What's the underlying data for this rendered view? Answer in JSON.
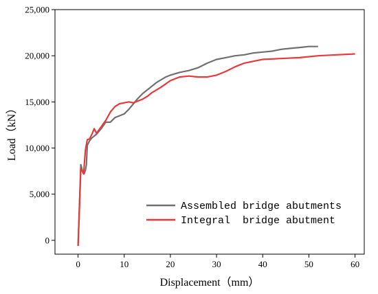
{
  "chart_data": {
    "type": "line",
    "title": "",
    "xlabel": "Displacement（mm）",
    "ylabel": "Load（kN）",
    "xlim": [
      -5,
      62
    ],
    "ylim": [
      -1500,
      25000
    ],
    "x_ticks": [
      0,
      10,
      20,
      30,
      40,
      50,
      60
    ],
    "x_tick_labels": [
      "0",
      "10",
      "20",
      "30",
      "40",
      "50",
      "60"
    ],
    "y_ticks": [
      0,
      5000,
      10000,
      15000,
      20000,
      25000
    ],
    "y_tick_labels": [
      "0",
      "5,000",
      "10,000",
      "15,000",
      "20,000",
      "25,000"
    ],
    "grid": false,
    "legend_position": "bottom-right",
    "series": [
      {
        "name": "Assembled bridge abutments",
        "color": "#707070",
        "x": [
          0,
          0.6,
          1.0,
          1.3,
          1.6,
          1.8,
          2.0,
          2.5,
          3,
          4,
          5,
          6,
          7,
          8,
          9,
          10,
          11,
          12,
          13,
          14,
          15,
          16,
          17,
          18,
          19,
          20,
          22,
          24,
          26,
          28,
          30,
          32,
          34,
          36,
          38,
          40,
          42,
          44,
          46,
          48,
          50,
          52
        ],
        "y": [
          -600,
          8200,
          7400,
          7200,
          7600,
          8200,
          10300,
          10800,
          11100,
          11500,
          12100,
          12800,
          12800,
          13300,
          13500,
          13700,
          14200,
          14800,
          15400,
          15900,
          16300,
          16700,
          17100,
          17400,
          17700,
          17900,
          18200,
          18400,
          18700,
          19200,
          19600,
          19800,
          20000,
          20100,
          20300,
          20400,
          20500,
          20700,
          20800,
          20900,
          21000,
          21000
        ]
      },
      {
        "name": "Integral  bridge abutment",
        "color": "#e8383a",
        "x": [
          0,
          0.6,
          1.2,
          1.6,
          2.0,
          2.5,
          3.0,
          3.5,
          4,
          5,
          6,
          7,
          8,
          9,
          10,
          11,
          12,
          13,
          14,
          15,
          16,
          18,
          20,
          22,
          24,
          26,
          28,
          30,
          32,
          34,
          36,
          38,
          40,
          44,
          48,
          52,
          56,
          60
        ],
        "y": [
          -600,
          7800,
          7200,
          9800,
          10900,
          11000,
          11500,
          12100,
          11600,
          12300,
          13000,
          13900,
          14500,
          14800,
          14900,
          15000,
          14900,
          15100,
          15300,
          15600,
          16000,
          16600,
          17300,
          17700,
          17800,
          17700,
          17700,
          17900,
          18300,
          18800,
          19200,
          19400,
          19600,
          19700,
          19800,
          20000,
          20100,
          20200
        ]
      }
    ]
  }
}
